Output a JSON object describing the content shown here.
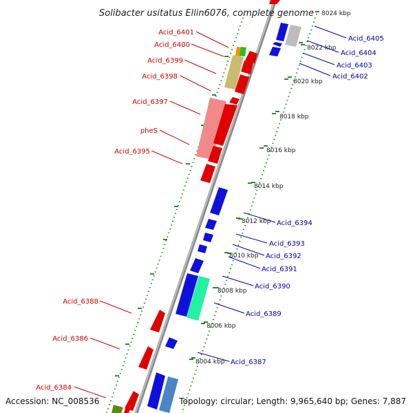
{
  "title": "Solibacter usitatus Ellin6076, complete genome",
  "accession": "Accession: NC_008536",
  "topology": "Topology: circular; Length: 9,965,640 bp; Genes: 7,887",
  "colors": {
    "forward_label": "#cc0000",
    "reverse_label": "#0000aa",
    "backbone": "#8a8a8a",
    "gc_dots": "#2a8a2a"
  },
  "kbp_ticks": [
    "8004 kbp",
    "8006 kbp",
    "8008 kbp",
    "8010 kbp",
    "8012 kbp",
    "8014 kbp",
    "8016 kbp",
    "8018 kbp",
    "8020 kbp",
    "8022 kbp",
    "8024 kbp"
  ],
  "forward_genes": [
    "Acid_6401",
    "Acid_6400",
    "Acid_6399",
    "Acid_6398",
    "Acid_6397",
    "pheS",
    "Acid_6395",
    "Acid_6388",
    "Acid_6386",
    "Acid_6384"
  ],
  "reverse_genes": [
    "Acid_6405",
    "Acid_6404",
    "Acid_6403",
    "Acid_6402",
    "Acid_6394",
    "Acid_6393",
    "Acid_6392",
    "Acid_6391",
    "Acid_6390",
    "Acid_6389",
    "Acid_6387"
  ]
}
